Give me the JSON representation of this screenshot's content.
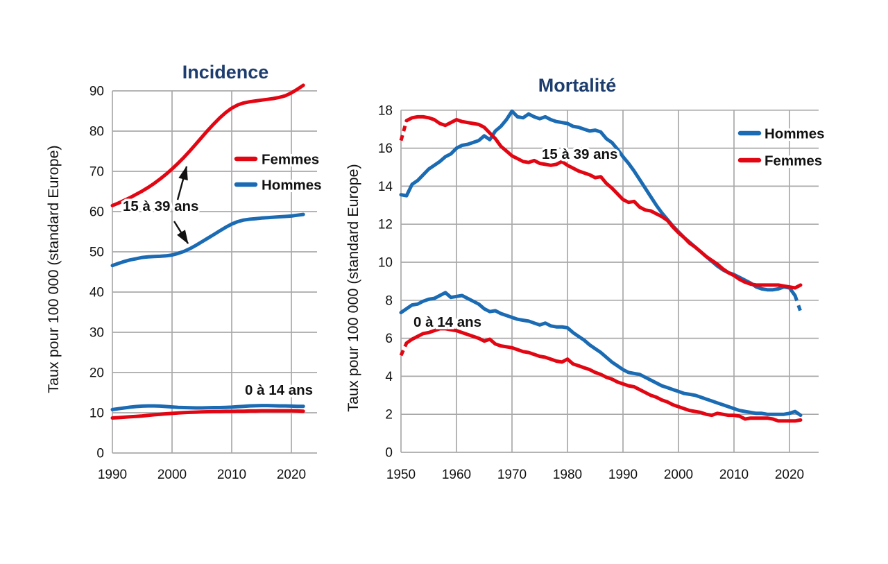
{
  "figure": {
    "background": "#ffffff"
  },
  "colors": {
    "femmes": "#e20613",
    "hommes": "#1a6bb3",
    "title": "#1c3d6d",
    "grid": "#a9a9a9",
    "text": "#111111"
  },
  "chart_data": [
    {
      "id": "chart-incidence",
      "type": "line",
      "title": "Incidence",
      "ylabel": "Taux pour 100 000 (standard Europe)",
      "xlabel": "",
      "x_start": 1990,
      "x_step": 1,
      "x_ticks": [
        1990,
        2000,
        2010,
        2020
      ],
      "y_ticks": [
        0,
        10,
        20,
        30,
        40,
        50,
        60,
        70,
        80,
        90
      ],
      "xlim": [
        1990,
        2024
      ],
      "ylim": [
        0,
        90
      ],
      "grid": true,
      "legend_position": "inside upper right",
      "legend": [
        {
          "label": "Femmes",
          "color_key": "femmes"
        },
        {
          "label": "Hommes",
          "color_key": "hommes"
        }
      ],
      "annotations": [
        {
          "id": "age-15-39",
          "text": "15 à 39 ans"
        },
        {
          "id": "age-0-14",
          "text": "0 à 14 ans"
        }
      ],
      "series": [
        {
          "name": "Femmes 15 à 39 ans",
          "color_key": "femmes",
          "values": [
            61.5,
            62.1,
            62.8,
            63.5,
            64.3,
            65.1,
            66.0,
            67.0,
            68.1,
            69.3,
            70.6,
            72.0,
            73.5,
            75.1,
            76.8,
            78.5,
            80.2,
            81.8,
            83.3,
            84.6,
            85.7,
            86.5,
            87.0,
            87.3,
            87.5,
            87.7,
            87.9,
            88.1,
            88.4,
            88.8,
            89.5,
            90.4,
            91.4
          ]
        },
        {
          "name": "Hommes 15 à 39 ans",
          "color_key": "hommes",
          "values": [
            46.6,
            47.1,
            47.6,
            48.0,
            48.3,
            48.6,
            48.75,
            48.85,
            48.9,
            49.0,
            49.2,
            49.6,
            50.1,
            50.8,
            51.6,
            52.5,
            53.4,
            54.3,
            55.2,
            56.1,
            56.9,
            57.5,
            57.9,
            58.1,
            58.25,
            58.4,
            58.5,
            58.6,
            58.7,
            58.8,
            58.9,
            59.1,
            59.3
          ]
        },
        {
          "name": "Hommes 0 à 14 ans",
          "color_key": "hommes",
          "values": [
            10.8,
            11.0,
            11.2,
            11.4,
            11.55,
            11.65,
            11.7,
            11.7,
            11.65,
            11.55,
            11.45,
            11.35,
            11.3,
            11.25,
            11.2,
            11.2,
            11.25,
            11.3,
            11.3,
            11.35,
            11.4,
            11.5,
            11.6,
            11.7,
            11.75,
            11.8,
            11.8,
            11.75,
            11.7,
            11.7,
            11.65,
            11.6,
            11.6
          ]
        },
        {
          "name": "Femmes 0 à 14 ans",
          "color_key": "femmes",
          "values": [
            8.7,
            8.8,
            8.9,
            9.0,
            9.1,
            9.2,
            9.35,
            9.5,
            9.6,
            9.75,
            9.85,
            9.95,
            10.05,
            10.1,
            10.15,
            10.2,
            10.25,
            10.3,
            10.3,
            10.35,
            10.35,
            10.4,
            10.4,
            10.45,
            10.45,
            10.5,
            10.5,
            10.5,
            10.5,
            10.5,
            10.5,
            10.45,
            10.4
          ]
        }
      ]
    },
    {
      "id": "chart-mortalite",
      "type": "line",
      "title": "Mortalité",
      "ylabel": "Taux pour 100 000 (standard Europe)",
      "xlabel": "",
      "x_start": 1950,
      "x_step": 1,
      "x_ticks": [
        1950,
        1960,
        1970,
        1980,
        1990,
        2000,
        2010,
        2020
      ],
      "y_ticks": [
        0,
        2,
        4,
        6,
        8,
        10,
        12,
        14,
        16,
        18
      ],
      "xlim": [
        1950,
        2025
      ],
      "ylim": [
        0,
        18
      ],
      "grid": true,
      "legend_position": "inside upper right",
      "legend": [
        {
          "label": "Hommes",
          "color_key": "hommes"
        },
        {
          "label": "Femmes",
          "color_key": "femmes"
        }
      ],
      "annotations": [
        {
          "id": "age-15-39",
          "text": "15 à 39 ans"
        },
        {
          "id": "age-0-14",
          "text": "0 à 14 ans"
        }
      ],
      "series": [
        {
          "name": "Hommes 15 à 39 ans",
          "color_key": "hommes",
          "dash_tail": 1,
          "values": [
            13.55,
            13.5,
            14.1,
            14.3,
            14.6,
            14.9,
            15.1,
            15.3,
            15.55,
            15.7,
            16.0,
            16.15,
            16.2,
            16.3,
            16.4,
            16.65,
            16.45,
            16.9,
            17.15,
            17.5,
            17.95,
            17.65,
            17.6,
            17.8,
            17.65,
            17.55,
            17.65,
            17.5,
            17.4,
            17.35,
            17.3,
            17.15,
            17.1,
            17.0,
            16.9,
            16.95,
            16.85,
            16.5,
            16.3,
            15.95,
            15.55,
            15.2,
            14.8,
            14.35,
            13.9,
            13.45,
            13.0,
            12.6,
            12.25,
            11.9,
            11.6,
            11.3,
            11.05,
            10.8,
            10.55,
            10.3,
            10.05,
            9.8,
            9.6,
            9.45,
            9.35,
            9.2,
            9.05,
            8.9,
            8.7,
            8.6,
            8.55,
            8.55,
            8.6,
            8.7,
            8.65,
            8.25,
            7.4
          ]
        },
        {
          "name": "Femmes 15 à 39 ans",
          "color_key": "femmes",
          "dash_head": 1,
          "values": [
            16.4,
            17.45,
            17.6,
            17.65,
            17.65,
            17.6,
            17.5,
            17.3,
            17.2,
            17.35,
            17.5,
            17.4,
            17.35,
            17.3,
            17.25,
            17.1,
            16.8,
            16.5,
            16.1,
            15.85,
            15.6,
            15.45,
            15.3,
            15.25,
            15.35,
            15.2,
            15.15,
            15.1,
            15.15,
            15.3,
            15.1,
            14.95,
            14.8,
            14.7,
            14.6,
            14.45,
            14.5,
            14.15,
            13.9,
            13.6,
            13.3,
            13.15,
            13.2,
            12.9,
            12.75,
            12.7,
            12.55,
            12.4,
            12.2,
            11.85,
            11.55,
            11.3,
            11.0,
            10.8,
            10.55,
            10.3,
            10.1,
            9.9,
            9.65,
            9.45,
            9.3,
            9.1,
            8.95,
            8.85,
            8.8,
            8.8,
            8.8,
            8.8,
            8.8,
            8.75,
            8.7,
            8.65,
            8.8
          ]
        },
        {
          "name": "Hommes 0 à 14 ans",
          "color_key": "hommes",
          "values": [
            7.35,
            7.55,
            7.75,
            7.8,
            7.95,
            8.05,
            8.1,
            8.25,
            8.4,
            8.15,
            8.2,
            8.25,
            8.1,
            7.95,
            7.8,
            7.55,
            7.4,
            7.45,
            7.3,
            7.2,
            7.1,
            7.0,
            6.95,
            6.9,
            6.8,
            6.7,
            6.8,
            6.65,
            6.6,
            6.6,
            6.55,
            6.3,
            6.1,
            5.9,
            5.65,
            5.45,
            5.25,
            5.0,
            4.75,
            4.55,
            4.35,
            4.2,
            4.15,
            4.1,
            3.95,
            3.8,
            3.65,
            3.5,
            3.4,
            3.3,
            3.2,
            3.1,
            3.05,
            3.0,
            2.9,
            2.8,
            2.7,
            2.6,
            2.5,
            2.4,
            2.3,
            2.2,
            2.15,
            2.1,
            2.05,
            2.05,
            2.0,
            2.0,
            2.0,
            2.0,
            2.05,
            2.15,
            1.95
          ]
        },
        {
          "name": "Femmes 0 à 14 ans",
          "color_key": "femmes",
          "dash_head": 1,
          "values": [
            5.1,
            5.75,
            5.95,
            6.1,
            6.25,
            6.3,
            6.4,
            6.5,
            6.5,
            6.45,
            6.4,
            6.3,
            6.2,
            6.1,
            6.0,
            5.85,
            5.95,
            5.7,
            5.6,
            5.55,
            5.5,
            5.4,
            5.3,
            5.25,
            5.15,
            5.05,
            5.0,
            4.9,
            4.8,
            4.75,
            4.9,
            4.65,
            4.55,
            4.45,
            4.35,
            4.2,
            4.1,
            3.95,
            3.85,
            3.7,
            3.6,
            3.5,
            3.45,
            3.3,
            3.15,
            3.0,
            2.9,
            2.75,
            2.65,
            2.5,
            2.4,
            2.3,
            2.2,
            2.15,
            2.1,
            2.0,
            1.95,
            2.05,
            2.0,
            1.95,
            1.95,
            1.9,
            1.75,
            1.8,
            1.8,
            1.8,
            1.8,
            1.75,
            1.65,
            1.65,
            1.65,
            1.65,
            1.7
          ]
        }
      ]
    }
  ]
}
